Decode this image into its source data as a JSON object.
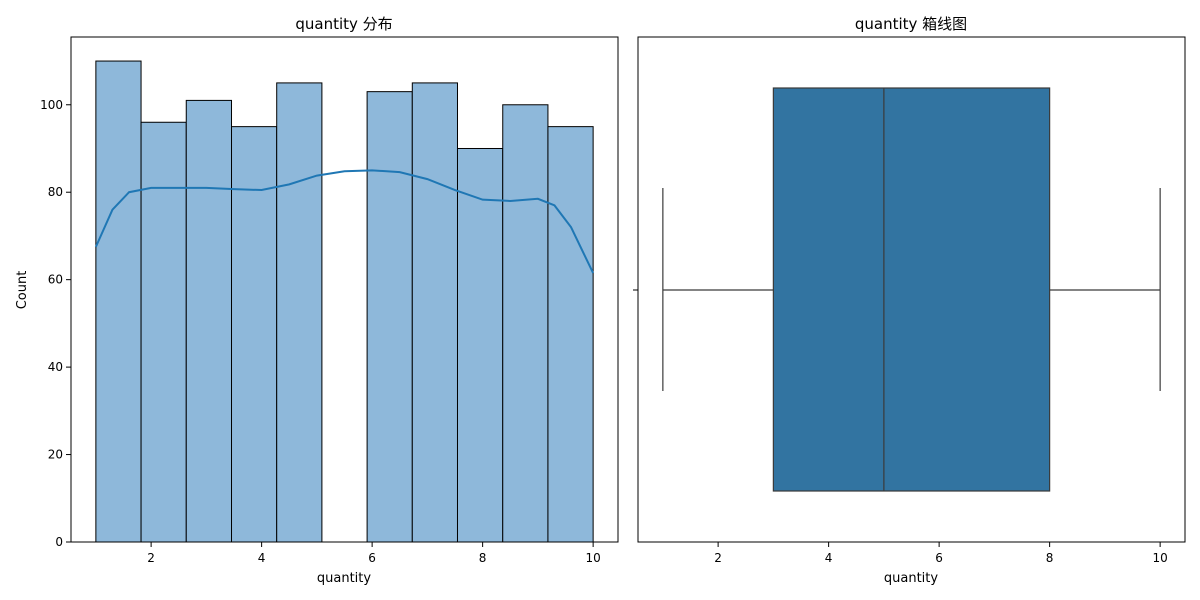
{
  "chart_data": [
    {
      "type": "bar",
      "subtype": "histogram",
      "title": "quantity 分布",
      "xlabel": "quantity",
      "ylabel": "Count",
      "xlim": [
        0.55,
        10.45
      ],
      "ylim": [
        0,
        115.5
      ],
      "xticks": [
        2,
        4,
        6,
        8,
        10
      ],
      "yticks": [
        0,
        20,
        40,
        60,
        80,
        100
      ],
      "bin_edges": [
        1.0,
        1.818,
        2.636,
        3.455,
        4.273,
        5.091,
        5.909,
        6.727,
        7.545,
        8.364,
        9.182,
        10.0
      ],
      "values": [
        110,
        96,
        101,
        95,
        105,
        0,
        103,
        105,
        90,
        100,
        95
      ],
      "bar_color": "#8eb8da",
      "edge_color": "#000000",
      "kde": {
        "color": "#1f77b4",
        "x": [
          1.0,
          1.3,
          1.6,
          2.0,
          2.5,
          3.0,
          3.5,
          4.0,
          4.5,
          5.0,
          5.5,
          6.0,
          6.5,
          7.0,
          7.5,
          8.0,
          8.5,
          9.0,
          9.3,
          9.6,
          10.0
        ],
        "y": [
          67.5,
          76.0,
          80.0,
          81.0,
          81.0,
          81.0,
          80.7,
          80.5,
          81.8,
          83.8,
          84.8,
          85.0,
          84.6,
          83.0,
          80.5,
          78.3,
          78.0,
          78.5,
          77.0,
          72.0,
          61.5
        ]
      },
      "grid": false
    },
    {
      "type": "boxplot",
      "title": "quantity 箱线图",
      "xlabel": "quantity",
      "xlim": [
        0.55,
        10.45
      ],
      "xticks": [
        2,
        4,
        6,
        8,
        10
      ],
      "whisker_low": 1,
      "q1": 3,
      "median": 5,
      "q3": 8,
      "whisker_high": 10,
      "box_color": "#3274a1",
      "line_color": "#3a3a3a",
      "grid": false
    }
  ]
}
